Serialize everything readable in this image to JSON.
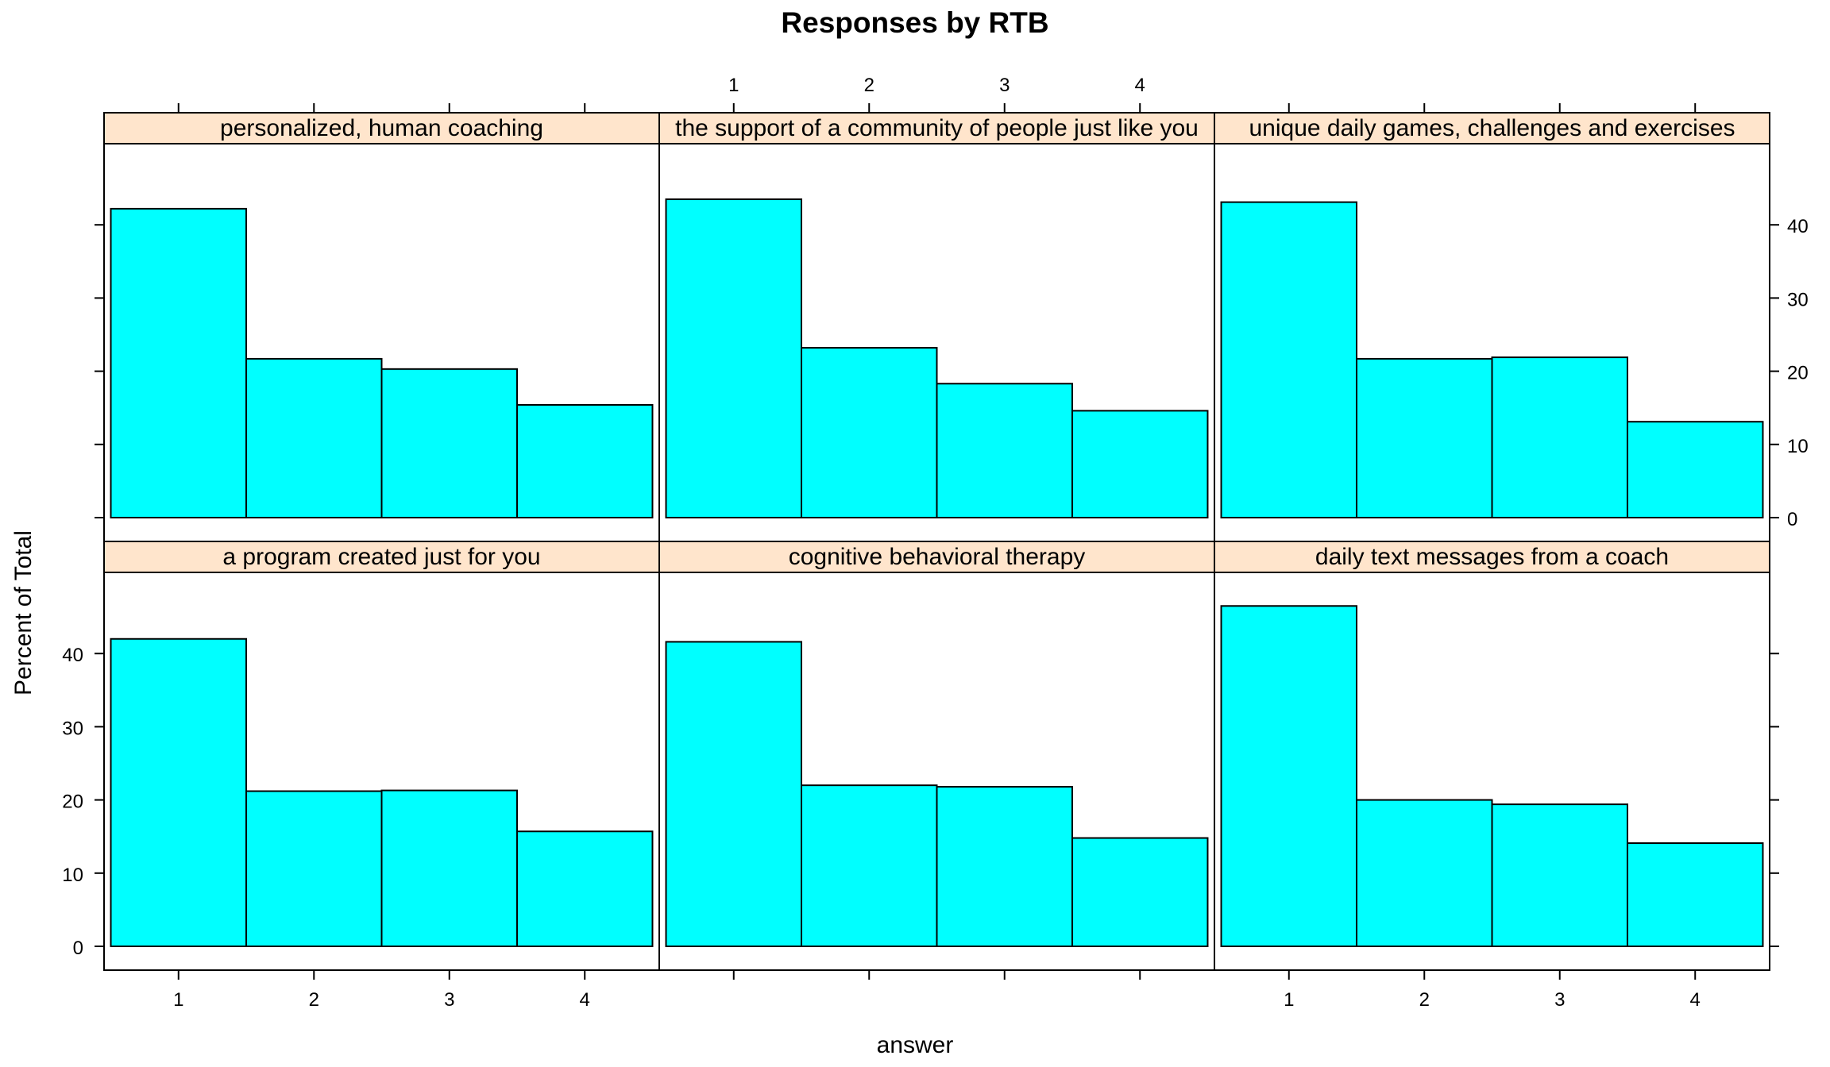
{
  "colors": {
    "bar_fill": "#00ffff",
    "bar_stroke": "#000000",
    "strip_fill": "#ffe5cc",
    "frame": "#000000"
  },
  "chart_data": {
    "type": "bar",
    "title": "Responses by RTB",
    "xlabel": "answer",
    "ylabel": "Percent of Total",
    "categories": [
      "1",
      "2",
      "3",
      "4"
    ],
    "ylim": [
      0,
      50
    ],
    "yticks": [
      "0",
      "10",
      "20",
      "30",
      "40"
    ],
    "grid": false,
    "panels": [
      {
        "name": "a program created just for you",
        "values": [
          42.0,
          21.2,
          21.3,
          15.7
        ]
      },
      {
        "name": "cognitive behavioral therapy",
        "values": [
          41.6,
          22.0,
          21.8,
          14.8
        ]
      },
      {
        "name": "daily text messages from a coach",
        "values": [
          46.5,
          20.0,
          19.4,
          14.1
        ]
      },
      {
        "name": "personalized, human coaching",
        "values": [
          42.2,
          21.7,
          20.3,
          15.4
        ]
      },
      {
        "name": "the support of a community of people just like you",
        "values": [
          43.5,
          23.2,
          18.3,
          14.6
        ]
      },
      {
        "name": "unique daily games, challenges and exercises",
        "values": [
          43.1,
          21.7,
          21.9,
          13.1
        ]
      }
    ]
  }
}
